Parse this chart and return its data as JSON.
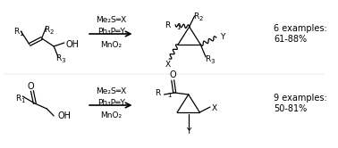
{
  "background_color": "#ffffff",
  "fig_width": 3.78,
  "fig_height": 1.66,
  "dpi": 100,
  "top_reaction": {
    "reagents_line1": "Me₂S═X",
    "reagents_line2": "Ph₃P═Y",
    "reagents_line3": "MnO₂",
    "examples": "6 examples:",
    "yield": "61-88%"
  },
  "bottom_reaction": {
    "reagents_line1": "Me₂S═X",
    "reagents_line2": "Ph₃P═Y",
    "reagents_line3": "MnO₂",
    "examples": "9 examples:",
    "yield": "50-81%"
  },
  "font_size_small": 6.5,
  "font_size_medium": 7.5,
  "line_color": "#000000",
  "line_width": 0.9,
  "bond_width": 0.9,
  "thin_line": 0.5
}
